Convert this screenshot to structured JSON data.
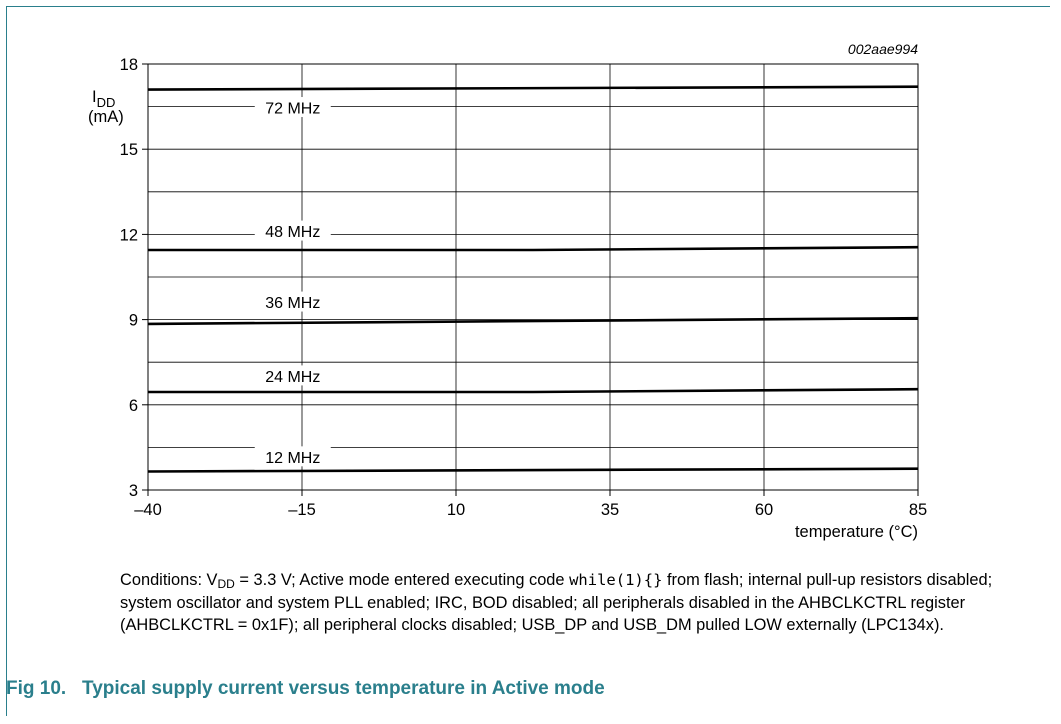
{
  "chart_data": {
    "type": "line",
    "id_label": "002aae994",
    "ylabel_main": "I",
    "ylabel_sub": "DD",
    "ylabel_unit": "(mA)",
    "xlabel": "temperature (°C)",
    "x_ticks": [
      -40,
      -15,
      10,
      35,
      60,
      85
    ],
    "x_tick_labels": [
      "–40",
      "–15",
      "10",
      "35",
      "60",
      "85"
    ],
    "y_ticks": [
      3,
      6,
      9,
      12,
      15,
      18
    ],
    "y_tick_labels": [
      "3",
      "6",
      "9",
      "12",
      "15",
      "18"
    ],
    "xlim": [
      -40,
      85
    ],
    "ylim": [
      3,
      18
    ],
    "grid": true,
    "series": [
      {
        "name": "72 MHz",
        "x": [
          -40,
          85
        ],
        "y": [
          17.1,
          17.2
        ]
      },
      {
        "name": "48 MHz",
        "x": [
          -40,
          22.5,
          85
        ],
        "y": [
          11.45,
          11.45,
          11.55
        ]
      },
      {
        "name": "36 MHz",
        "x": [
          -40,
          85
        ],
        "y": [
          8.85,
          9.05
        ]
      },
      {
        "name": "24 MHz",
        "x": [
          -40,
          22.5,
          85
        ],
        "y": [
          6.45,
          6.45,
          6.55
        ]
      },
      {
        "name": "12 MHz",
        "x": [
          -40,
          85
        ],
        "y": [
          3.65,
          3.75
        ]
      }
    ],
    "labels": [
      {
        "name": "72 MHz",
        "x": -16.5,
        "y": 16.45
      },
      {
        "name": "48 MHz",
        "x": -16.5,
        "y": 12.1
      },
      {
        "name": "36 MHz",
        "x": -16.5,
        "y": 9.6
      },
      {
        "name": "24 MHz",
        "x": -16.5,
        "y": 7.0
      },
      {
        "name": "12 MHz",
        "x": -16.5,
        "y": 4.15
      }
    ]
  },
  "conditions": {
    "lead": "Conditions: V",
    "vdd_sub": "DD",
    "part1": " = 3.3 V; Active mode entered executing code ",
    "code": "while(1){}",
    "part2": " from flash; internal pull-up resistors disabled; system oscillator and system PLL enabled; IRC, BOD disabled; all peripherals disabled in the AHBCLKCTRL register (AHBCLKCTRL = 0x1F); all peripheral clocks disabled; USB_DP and USB_DM pulled LOW externally (LPC134x)."
  },
  "caption": "Fig 10.   Typical supply current versus temperature in Active mode",
  "colors": {
    "accent": "#2a7f8c",
    "line": "#000000",
    "grid": "#000000"
  }
}
